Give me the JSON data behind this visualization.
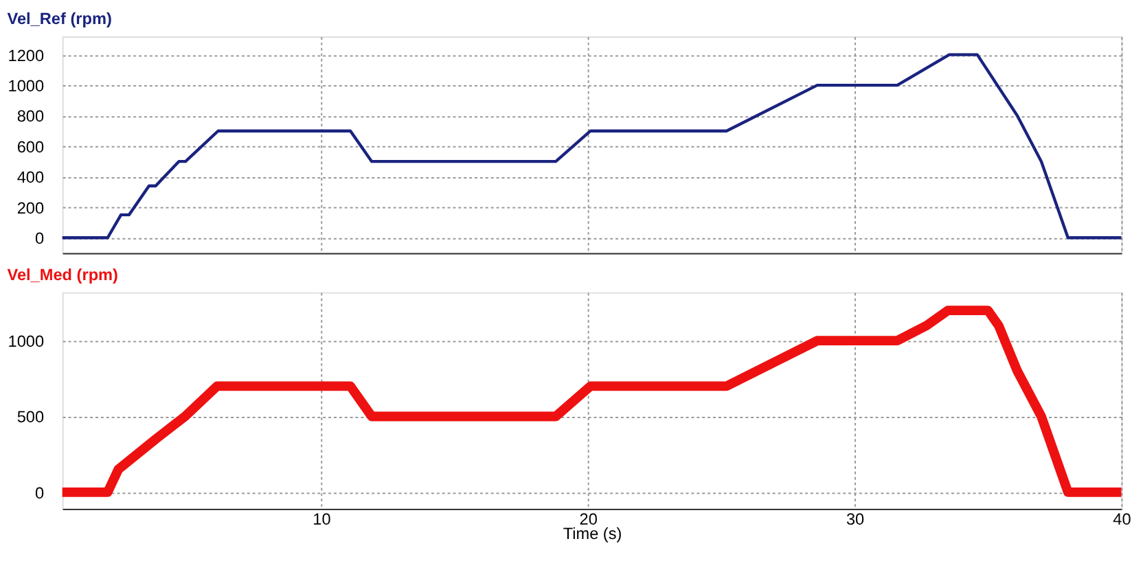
{
  "chart_data": [
    {
      "type": "line",
      "title": "Vel_Ref (rpm)",
      "x": [
        0.3,
        2.0,
        2.5,
        2.8,
        3.55,
        3.8,
        4.67,
        4.92,
        6.14,
        11.1,
        11.9,
        18.8,
        20.1,
        25.2,
        28.6,
        31.6,
        33.55,
        34.6,
        36.1,
        37.0,
        38.0,
        40
      ],
      "series": [
        {
          "color": "#1a237e",
          "values": [
            0,
            0,
            150,
            150,
            340,
            340,
            500,
            500,
            700,
            700,
            500,
            500,
            700,
            700,
            1000,
            1000,
            1200,
            1200,
            800,
            500,
            0,
            0
          ]
        }
      ],
      "xlim": [
        0.3,
        40
      ],
      "xticks": [
        10,
        20,
        30,
        40
      ],
      "ylim": [
        -100,
        1320
      ],
      "yticks": [
        0,
        200,
        400,
        600,
        800,
        1000,
        1200
      ],
      "grid": true,
      "tick_labels": "y"
    },
    {
      "type": "line",
      "title": "Vel_Med (rpm)",
      "xlabel": "Time (s)",
      "x": [
        0.3,
        2.0,
        2.4,
        3.8,
        4.9,
        6.1,
        11.1,
        11.9,
        18.8,
        20.1,
        25.2,
        28.6,
        31.6,
        32.7,
        33.5,
        35.0,
        35.4,
        36.1,
        37.0,
        38.0,
        40
      ],
      "series": [
        {
          "color": "#ee1111",
          "values": [
            0,
            0,
            150,
            350,
            500,
            700,
            700,
            500,
            500,
            700,
            700,
            1000,
            1000,
            1100,
            1200,
            1200,
            1100,
            800,
            500,
            0,
            0
          ]
        }
      ],
      "xlim": [
        0.3,
        40
      ],
      "xticks": [
        10,
        20,
        30,
        40
      ],
      "ylim": [
        -110,
        1320
      ],
      "yticks": [
        0,
        500,
        1000
      ],
      "grid": true
    }
  ]
}
